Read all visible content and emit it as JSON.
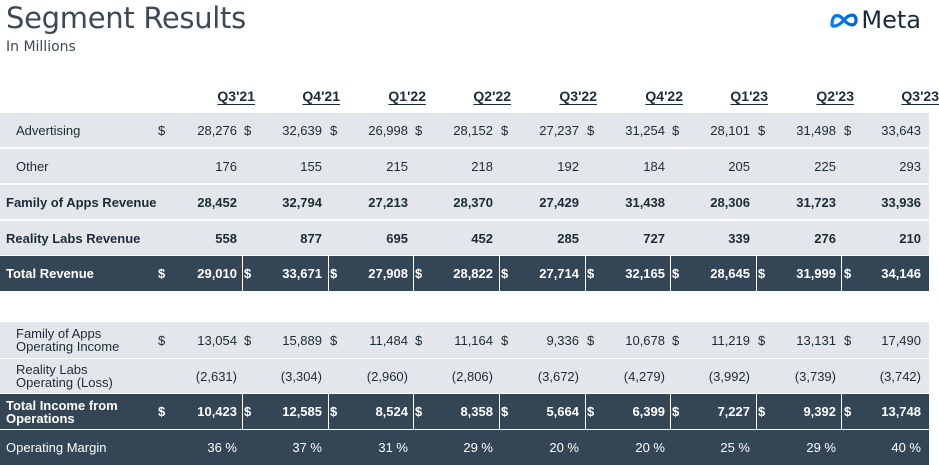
{
  "header": {
    "title": "Segment Results",
    "subtitle": "In Millions",
    "logo_text": "Meta"
  },
  "columns": [
    "Q3'21",
    "Q4'21",
    "Q1'22",
    "Q2'22",
    "Q3'22",
    "Q4'22",
    "Q1'23",
    "Q2'23",
    "Q3'23"
  ],
  "currency_symbol": "$",
  "rows": [
    {
      "label": "Advertising",
      "values": [
        "28,276",
        "32,639",
        "26,998",
        "28,152",
        "27,237",
        "31,254",
        "28,101",
        "31,498",
        "33,643"
      ]
    },
    {
      "label": "Other",
      "values": [
        "176",
        "155",
        "215",
        "218",
        "192",
        "184",
        "205",
        "225",
        "293"
      ]
    },
    {
      "label": "Family of Apps Revenue",
      "values": [
        "28,452",
        "32,794",
        "27,213",
        "28,370",
        "27,429",
        "31,438",
        "28,306",
        "31,723",
        "33,936"
      ]
    },
    {
      "label": "Reality Labs Revenue",
      "values": [
        "558",
        "877",
        "695",
        "452",
        "285",
        "727",
        "339",
        "276",
        "210"
      ]
    },
    {
      "label": "Total Revenue",
      "values": [
        "29,010",
        "33,671",
        "27,908",
        "28,822",
        "27,714",
        "32,165",
        "28,645",
        "31,999",
        "34,146"
      ]
    },
    {
      "label": "Family of Apps Operating Income",
      "values": [
        "13,054",
        "15,889",
        "11,484",
        "11,164",
        "9,336",
        "10,678",
        "11,219",
        "13,131",
        "17,490"
      ]
    },
    {
      "label": "Reality Labs Operating (Loss)",
      "values": [
        "(2,631)",
        "(3,304)",
        "(2,960)",
        "(2,806)",
        "(3,672)",
        "(4,279)",
        "(3,992)",
        "(3,739)",
        "(3,742)"
      ]
    },
    {
      "label": "Total Income from Operations",
      "values": [
        "10,423",
        "12,585",
        "8,524",
        "8,358",
        "5,664",
        "6,399",
        "7,227",
        "9,392",
        "13,748"
      ]
    },
    {
      "label": "Operating Margin",
      "values": [
        "36 %",
        "37 %",
        "31 %",
        "29 %",
        "20 %",
        "20 %",
        "25 %",
        "29 %",
        "40 %"
      ]
    }
  ],
  "colors": {
    "dark_row": "#344656",
    "light_row": "#e3e6ea",
    "text": "#1c2b39",
    "logo_blue": "#0668e1"
  }
}
